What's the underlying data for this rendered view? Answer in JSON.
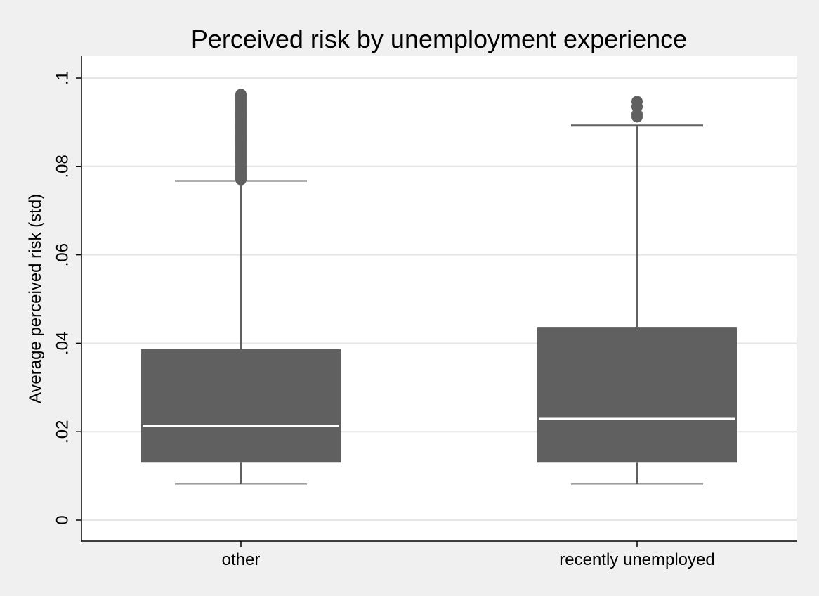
{
  "chart_data": {
    "type": "box",
    "title": "Perceived risk by unemployment experience",
    "xlabel": "",
    "ylabel": "Average perceived risk (std)",
    "ylim": [
      0,
      0.1
    ],
    "yticks": [
      0,
      0.02,
      0.04,
      0.06,
      0.08,
      0.1
    ],
    "ytick_labels": [
      "0",
      ".02",
      ".04",
      ".06",
      ".08",
      ".1"
    ],
    "grid": true,
    "legend": "none",
    "categories": [
      "other",
      "recently unemployed"
    ],
    "boxes": [
      {
        "category": "other",
        "whisker_low": 0.0082,
        "q1": 0.013,
        "median": 0.0213,
        "q3": 0.0387,
        "whisker_high": 0.0767,
        "outliers": [
          0.077,
          0.0775,
          0.078,
          0.0785,
          0.079,
          0.0795,
          0.08,
          0.0805,
          0.081,
          0.0815,
          0.082,
          0.0825,
          0.083,
          0.0835,
          0.084,
          0.0845,
          0.085,
          0.0855,
          0.086,
          0.0865,
          0.087,
          0.0875,
          0.088,
          0.0885,
          0.089,
          0.0895,
          0.09,
          0.0905,
          0.091,
          0.0915,
          0.092,
          0.0925,
          0.093,
          0.0935,
          0.094,
          0.0945,
          0.095,
          0.0955,
          0.096,
          0.0963
        ]
      },
      {
        "category": "recently unemployed",
        "whisker_low": 0.0082,
        "q1": 0.013,
        "median": 0.0229,
        "q3": 0.0437,
        "whisker_high": 0.0893,
        "outliers": [
          0.0912,
          0.0918,
          0.0935,
          0.0947
        ]
      }
    ],
    "colors": {
      "box_fill": "#606060",
      "median": "#ffffff",
      "whisker": "#606060",
      "outlier": "#606060",
      "grid": "#e6e6e6",
      "plot_bg": "#ffffff",
      "page_bg": "#f0f0f0",
      "axis": "#000000"
    }
  }
}
